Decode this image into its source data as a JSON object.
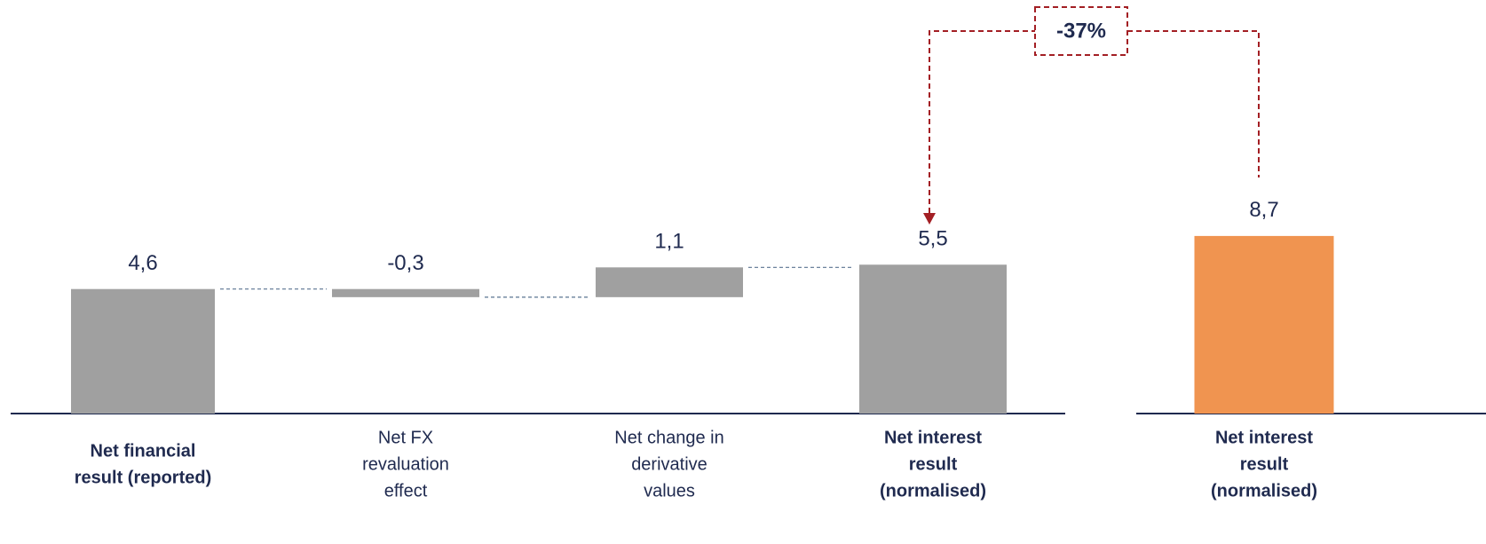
{
  "chart_data": [
    {
      "type": "waterfall",
      "categories": [
        [
          "Net financial",
          "result (reported)"
        ],
        [
          "Net FX",
          "revaluation",
          "effect"
        ],
        [
          "Net change in",
          "derivative",
          "values"
        ],
        [
          "Net interest",
          "result",
          "(normalised)"
        ]
      ],
      "values": [
        4.6,
        -0.3,
        1.1,
        5.5
      ],
      "value_labels": [
        "4,6",
        "-0,3",
        "1,1",
        "5,5"
      ],
      "measure": [
        "total",
        "relative",
        "relative",
        "total"
      ],
      "color": "#a0a0a0"
    },
    {
      "type": "bar",
      "categories": [
        [
          "Net interest",
          "result",
          "(normalised)"
        ]
      ],
      "values": [
        8.7
      ],
      "value_labels": [
        "8,7"
      ],
      "measure": [
        "total"
      ],
      "color": "#f09450",
      "annotation": "-37%"
    }
  ]
}
